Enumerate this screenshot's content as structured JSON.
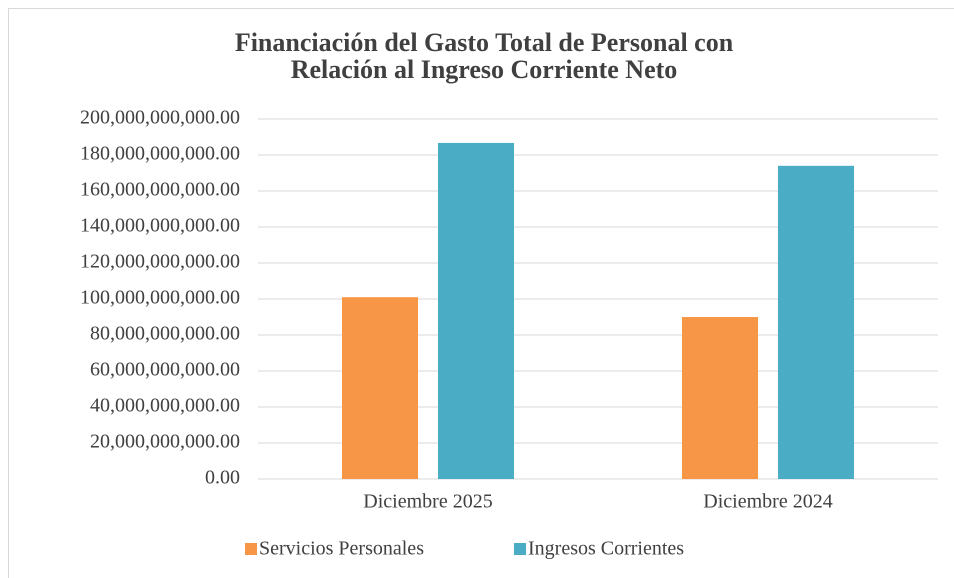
{
  "chart_data": {
    "type": "bar",
    "title": [
      "Financiación del Gasto Total de Personal con",
      "Relación al Ingreso Corriente Neto"
    ],
    "categories": [
      "Diciembre 2025",
      "Diciembre 2024"
    ],
    "series": [
      {
        "name": "Servicios Personales",
        "color": "#f79646",
        "values": [
          101000000000,
          90000000000
        ]
      },
      {
        "name": "Ingresos Corrientes",
        "color": "#4bacc6",
        "values": [
          186700000000,
          174000000000
        ]
      }
    ],
    "ylim": [
      0,
      200000000000
    ],
    "yticks": [
      {
        "value": 0,
        "label": "0.00"
      },
      {
        "value": 20000000000,
        "label": "20,000,000,000.00"
      },
      {
        "value": 40000000000,
        "label": "40,000,000,000.00"
      },
      {
        "value": 60000000000,
        "label": "60,000,000,000.00"
      },
      {
        "value": 80000000000,
        "label": "80,000,000,000.00"
      },
      {
        "value": 100000000000,
        "label": "100,000,000,000.00"
      },
      {
        "value": 120000000000,
        "label": "120,000,000,000.00"
      },
      {
        "value": 140000000000,
        "label": "140,000,000,000.00"
      },
      {
        "value": 160000000000,
        "label": "160,000,000,000.00"
      },
      {
        "value": 180000000000,
        "label": "180,000,000,000.00"
      },
      {
        "value": 200000000000,
        "label": "200,000,000,000.00"
      }
    ],
    "grid": true,
    "legend": "bottom"
  }
}
